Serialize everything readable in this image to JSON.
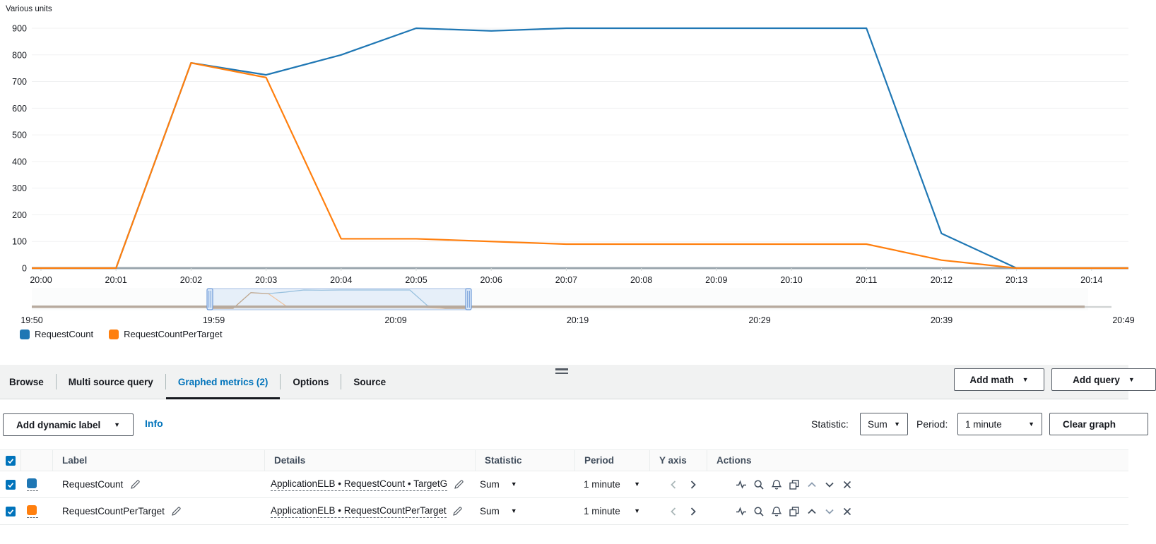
{
  "chart": {
    "unit_label": "Various units"
  },
  "chart_data": {
    "type": "line",
    "title": "",
    "ylabel": "Various units",
    "x": [
      "20:00",
      "20:01",
      "20:02",
      "20:03",
      "20:04",
      "20:05",
      "20:06",
      "20:07",
      "20:08",
      "20:09",
      "20:10",
      "20:11",
      "20:12",
      "20:13",
      "20:14"
    ],
    "y_ticks": [
      0,
      100,
      200,
      300,
      400,
      500,
      600,
      700,
      800,
      900
    ],
    "ylim": [
      0,
      900
    ],
    "grid": true,
    "legend_position": "bottom-left",
    "series": [
      {
        "name": "RequestCount",
        "color": "#1f77b4",
        "values": [
          0,
          0,
          770,
          725,
          800,
          900,
          890,
          900,
          900,
          900,
          900,
          900,
          130,
          0,
          0
        ]
      },
      {
        "name": "RequestCountPerTarget",
        "color": "#ff7f0e",
        "values": [
          0,
          0,
          770,
          715,
          110,
          110,
          100,
          90,
          90,
          90,
          90,
          90,
          30,
          0,
          0
        ]
      }
    ]
  },
  "timeline": {
    "labels": [
      "19:50",
      "19:59",
      "20:09",
      "20:19",
      "20:29",
      "20:39",
      "20:49"
    ]
  },
  "legend": {
    "items": [
      {
        "label": "RequestCount",
        "color": "#1f77b4"
      },
      {
        "label": "RequestCountPerTarget",
        "color": "#ff7f0e"
      }
    ]
  },
  "tabs": {
    "items": [
      {
        "label": "Browse"
      },
      {
        "label": "Multi source query"
      },
      {
        "label": "Graphed metrics (2)"
      },
      {
        "label": "Options"
      },
      {
        "label": "Source"
      }
    ]
  },
  "band_actions": {
    "add_math": "Add math",
    "add_query": "Add query"
  },
  "toolbar": {
    "add_dynamic_label": "Add dynamic label",
    "info": "Info",
    "statistic_label": "Statistic:",
    "statistic_value": "Sum",
    "period_label": "Period:",
    "period_value": "1 minute",
    "clear_graph": "Clear graph"
  },
  "metrics_table": {
    "headers": {
      "label": "Label",
      "details": "Details",
      "statistic": "Statistic",
      "period": "Period",
      "y_axis": "Y axis",
      "actions": "Actions"
    },
    "rows": [
      {
        "label": "RequestCount",
        "color": "#1f77b4",
        "details": "ApplicationELB • RequestCount • TargetG",
        "statistic": "Sum",
        "period": "1 minute"
      },
      {
        "label": "RequestCountPerTarget",
        "color": "#ff7f0e",
        "details": "ApplicationELB • RequestCountPerTarget",
        "statistic": "Sum",
        "period": "1 minute"
      }
    ]
  },
  "icons": {
    "caret_down": "▼"
  }
}
